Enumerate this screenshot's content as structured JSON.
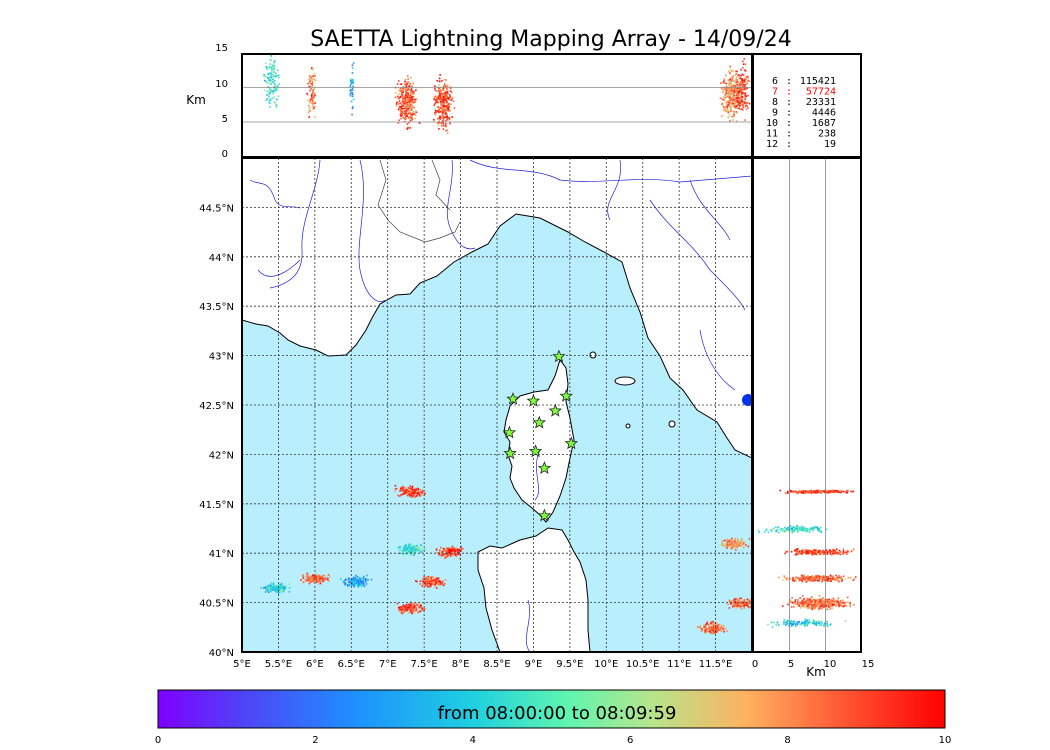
{
  "chart_data": {
    "type": "scatter",
    "title": "SAETTA Lightning Mapping Array - 14/09/24",
    "map_panel": {
      "x_ticks": [
        "5°E",
        "5.5°E",
        "6°E",
        "6.5°E",
        "7°E",
        "7.5°E",
        "8°E",
        "8.5°E",
        "9°E",
        "9.5°E",
        "10°E",
        "10.5°E",
        "11°E",
        "11.5°E"
      ],
      "y_ticks": [
        "40°N",
        "40.5°N",
        "41°N",
        "41.5°N",
        "42°N",
        "42.5°N",
        "43°N",
        "43.5°N",
        "44°N",
        "44.5°N"
      ],
      "xlim": [
        5.0,
        12.0
      ],
      "ylim": [
        40.0,
        45.0
      ],
      "stations": [
        {
          "lon": 9.35,
          "lat": 42.99
        },
        {
          "lon": 8.72,
          "lat": 42.56
        },
        {
          "lon": 9.0,
          "lat": 42.54
        },
        {
          "lon": 9.45,
          "lat": 42.59
        },
        {
          "lon": 9.3,
          "lat": 42.44
        },
        {
          "lon": 9.08,
          "lat": 42.32
        },
        {
          "lon": 8.67,
          "lat": 42.22
        },
        {
          "lon": 9.52,
          "lat": 42.11
        },
        {
          "lon": 8.68,
          "lat": 42.01
        },
        {
          "lon": 9.03,
          "lat": 42.03
        },
        {
          "lon": 9.15,
          "lat": 41.86
        },
        {
          "lon": 9.15,
          "lat": 41.38
        }
      ]
    },
    "altitude_panel": {
      "ylabel": "Km",
      "y_ticks": [
        "0",
        "5",
        "10",
        "15"
      ],
      "ylim": [
        0,
        15
      ]
    },
    "side_panel": {
      "xlabel": "Km",
      "x_ticks": [
        "0",
        "5",
        "10",
        "15"
      ],
      "xlim": [
        0,
        15
      ]
    },
    "station_counts": [
      {
        "stations": "6",
        "count": "115421",
        "highlight": false
      },
      {
        "stations": "7",
        "count": "57724",
        "highlight": true
      },
      {
        "stations": "8",
        "count": "23331",
        "highlight": false
      },
      {
        "stations": "9",
        "count": "4446",
        "highlight": false
      },
      {
        "stations": "10",
        "count": "1687",
        "highlight": false
      },
      {
        "stations": "11",
        "count": "238",
        "highlight": false
      },
      {
        "stations": "12",
        "count": "19",
        "highlight": false
      }
    ],
    "colorbar": {
      "label": "from 08:00:00 to 08:09:59",
      "ticks": [
        "0",
        "2",
        "4",
        "6",
        "8",
        "10"
      ],
      "range": [
        0,
        10
      ]
    },
    "storm_cells": [
      {
        "lon": 7.3,
        "lat": 41.63,
        "t": 9.0
      },
      {
        "lon": 7.3,
        "lat": 41.05,
        "t": 4.5
      },
      {
        "lon": 7.85,
        "lat": 41.02,
        "t": 9.0
      },
      {
        "lon": 7.6,
        "lat": 40.72,
        "t": 9.0
      },
      {
        "lon": 7.3,
        "lat": 40.45,
        "t": 9.0
      },
      {
        "lon": 6.0,
        "lat": 40.75,
        "t": 8.5
      },
      {
        "lon": 5.45,
        "lat": 40.65,
        "t": 4.0
      },
      {
        "lon": 6.55,
        "lat": 40.72,
        "t": 3.0
      },
      {
        "lon": 11.75,
        "lat": 41.1,
        "t": 8.0
      },
      {
        "lon": 11.85,
        "lat": 40.5,
        "t": 8.5
      },
      {
        "lon": 11.45,
        "lat": 40.25,
        "t": 8.5
      }
    ]
  },
  "colors": {
    "sea": "#b9eefc",
    "land": "#ffffff",
    "rivers": "#2222dd",
    "station_fill": "#7cff3a",
    "highlight_text": "#ff0000"
  }
}
